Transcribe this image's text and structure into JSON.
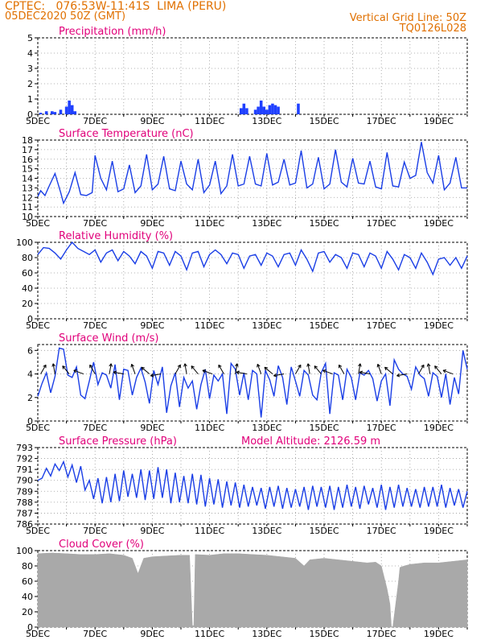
{
  "header": {
    "left_line1": "CPTEC:   076:53W-11:41S  LIMA (PERU)",
    "left_line2": "05DEC2020 50Z (GMT)",
    "right_line1": "Vertical Grid Line: 50Z",
    "right_line2": "TQ0126L028"
  },
  "colors": {
    "header": "#e07000",
    "title": "#e0007a",
    "series": "#1a3ee6",
    "precip": "#1f40ff",
    "cloud": "#a9a9a9"
  },
  "chart_data": [
    {
      "type": "bar",
      "title": "Precipitation (mm/h)",
      "ylim": [
        0,
        5
      ],
      "yticks": [
        0,
        1,
        2,
        3,
        4,
        5
      ],
      "xticks": [
        "5DEC",
        "7DEC",
        "9DEC",
        "11DEC",
        "13DEC",
        "15DEC",
        "17DEC",
        "19DEC"
      ],
      "x_start_day": 5,
      "x_end_day": 20,
      "grid": true,
      "bars": [
        {
          "day": 5.1,
          "value": 0.1
        },
        {
          "day": 5.3,
          "value": 0.2
        },
        {
          "day": 5.5,
          "value": 0.2
        },
        {
          "day": 5.6,
          "value": 0.15
        },
        {
          "day": 5.8,
          "value": 0.3
        },
        {
          "day": 6.0,
          "value": 0.5
        },
        {
          "day": 6.1,
          "value": 0.9
        },
        {
          "day": 6.2,
          "value": 0.6
        },
        {
          "day": 6.3,
          "value": 0.2
        },
        {
          "day": 12.1,
          "value": 0.4
        },
        {
          "day": 12.2,
          "value": 0.7
        },
        {
          "day": 12.3,
          "value": 0.4
        },
        {
          "day": 12.6,
          "value": 0.3
        },
        {
          "day": 12.7,
          "value": 0.5
        },
        {
          "day": 12.8,
          "value": 0.9
        },
        {
          "day": 12.9,
          "value": 0.5
        },
        {
          "day": 13.0,
          "value": 0.3
        },
        {
          "day": 13.1,
          "value": 0.6
        },
        {
          "day": 13.2,
          "value": 0.7
        },
        {
          "day": 13.3,
          "value": 0.6
        },
        {
          "day": 13.4,
          "value": 0.5
        },
        {
          "day": 14.1,
          "value": 0.7
        }
      ]
    },
    {
      "type": "line",
      "title": "Surface Temperature (nC)",
      "ylim": [
        10,
        18
      ],
      "yticks": [
        10,
        11,
        12,
        13,
        14,
        15,
        16,
        17,
        18
      ],
      "xticks": [
        "5DEC",
        "7DEC",
        "9DEC",
        "11DEC",
        "13DEC",
        "15DEC",
        "17DEC",
        "19DEC"
      ],
      "x_start_day": 5,
      "x_end_day": 20,
      "grid": true,
      "x": [
        5.0,
        5.1,
        5.25,
        5.4,
        5.6,
        5.8,
        5.9,
        6.1,
        6.3,
        6.5,
        6.7,
        6.9,
        7.0,
        7.2,
        7.4,
        7.6,
        7.8,
        8.0,
        8.2,
        8.4,
        8.6,
        8.8,
        9.0,
        9.2,
        9.4,
        9.6,
        9.8,
        10.0,
        10.2,
        10.4,
        10.6,
        10.8,
        11.0,
        11.2,
        11.4,
        11.6,
        11.8,
        12.0,
        12.2,
        12.4,
        12.6,
        12.8,
        13.0,
        13.2,
        13.4,
        13.6,
        13.8,
        14.0,
        14.2,
        14.4,
        14.6,
        14.8,
        15.0,
        15.2,
        15.4,
        15.6,
        15.8,
        16.0,
        16.2,
        16.4,
        16.6,
        16.8,
        17.0,
        17.2,
        17.4,
        17.6,
        17.8,
        18.0,
        18.2,
        18.4,
        18.6,
        18.8,
        19.0,
        19.2,
        19.4,
        19.6,
        19.8,
        20.0
      ],
      "y": [
        12.1,
        12.7,
        12.2,
        13.2,
        14.5,
        12.5,
        11.4,
        12.6,
        14.6,
        12.3,
        12.2,
        12.5,
        16.4,
        14.0,
        12.8,
        15.8,
        12.6,
        12.9,
        15.4,
        12.5,
        13.2,
        16.5,
        12.8,
        13.4,
        16.3,
        12.9,
        12.7,
        15.8,
        13.4,
        12.8,
        16.0,
        12.5,
        13.3,
        15.8,
        12.4,
        13.2,
        16.5,
        13.2,
        13.4,
        16.3,
        13.4,
        13.2,
        16.6,
        13.3,
        13.6,
        16.0,
        13.3,
        13.5,
        16.9,
        13.0,
        13.4,
        16.2,
        12.9,
        13.4,
        17.0,
        13.6,
        13.1,
        16.1,
        13.5,
        13.4,
        15.8,
        13.1,
        12.9,
        16.7,
        13.2,
        13.1,
        15.7,
        14.0,
        14.3,
        17.8,
        14.6,
        13.5,
        16.4,
        12.8,
        13.5,
        16.2,
        13.0,
        13.0
      ]
    },
    {
      "type": "line",
      "title": "Relative Humidity (%)",
      "ylim": [
        0,
        100
      ],
      "yticks": [
        0,
        20,
        40,
        60,
        80,
        100
      ],
      "xticks": [
        "5DEC",
        "7DEC",
        "9DEC",
        "11DEC",
        "13DEC",
        "15DEC",
        "17DEC",
        "19DEC"
      ],
      "x_start_day": 5,
      "x_end_day": 20,
      "grid": true,
      "x": [
        5.0,
        5.2,
        5.4,
        5.6,
        5.8,
        6.0,
        6.2,
        6.4,
        6.6,
        6.8,
        7.0,
        7.2,
        7.4,
        7.6,
        7.8,
        8.0,
        8.2,
        8.4,
        8.6,
        8.8,
        9.0,
        9.2,
        9.4,
        9.6,
        9.8,
        10.0,
        10.2,
        10.4,
        10.6,
        10.8,
        11.0,
        11.2,
        11.4,
        11.6,
        11.8,
        12.0,
        12.2,
        12.4,
        12.6,
        12.8,
        13.0,
        13.2,
        13.4,
        13.6,
        13.8,
        14.0,
        14.2,
        14.4,
        14.6,
        14.8,
        15.0,
        15.2,
        15.4,
        15.6,
        15.8,
        16.0,
        16.2,
        16.4,
        16.6,
        16.8,
        17.0,
        17.2,
        17.4,
        17.6,
        17.8,
        18.0,
        18.2,
        18.4,
        18.6,
        18.8,
        19.0,
        19.2,
        19.4,
        19.6,
        19.8,
        20.0
      ],
      "y": [
        84,
        93,
        92,
        86,
        78,
        90,
        100,
        92,
        88,
        84,
        90,
        74,
        86,
        90,
        76,
        88,
        82,
        72,
        88,
        82,
        66,
        88,
        86,
        70,
        88,
        82,
        64,
        86,
        88,
        68,
        84,
        90,
        84,
        72,
        86,
        84,
        66,
        82,
        84,
        70,
        86,
        82,
        68,
        84,
        86,
        70,
        90,
        78,
        62,
        86,
        88,
        74,
        84,
        80,
        66,
        86,
        84,
        68,
        86,
        82,
        66,
        88,
        78,
        64,
        84,
        80,
        66,
        86,
        74,
        58,
        78,
        80,
        70,
        80,
        66,
        82
      ]
    },
    {
      "type": "line",
      "title": "Surface Wind (m/s)",
      "ylim": [
        0,
        6.5
      ],
      "yticks": [
        0,
        2,
        4,
        6
      ],
      "xticks": [
        "5DEC",
        "7DEC",
        "9DEC",
        "11DEC",
        "13DEC",
        "15DEC",
        "17DEC",
        "19DEC"
      ],
      "x_start_day": 5,
      "x_end_day": 20,
      "grid": true,
      "x": [
        5.0,
        5.15,
        5.3,
        5.45,
        5.6,
        5.75,
        5.9,
        6.05,
        6.2,
        6.35,
        6.5,
        6.65,
        6.8,
        6.95,
        7.1,
        7.25,
        7.4,
        7.55,
        7.7,
        7.85,
        8.0,
        8.15,
        8.3,
        8.45,
        8.6,
        8.75,
        8.9,
        9.05,
        9.2,
        9.35,
        9.5,
        9.65,
        9.8,
        9.95,
        10.1,
        10.25,
        10.4,
        10.55,
        10.7,
        10.85,
        11.0,
        11.15,
        11.3,
        11.45,
        11.6,
        11.75,
        11.9,
        12.05,
        12.2,
        12.35,
        12.5,
        12.65,
        12.8,
        12.95,
        13.1,
        13.25,
        13.4,
        13.55,
        13.7,
        13.85,
        14.0,
        14.15,
        14.3,
        14.45,
        14.6,
        14.75,
        14.9,
        15.05,
        15.2,
        15.35,
        15.5,
        15.65,
        15.8,
        15.95,
        16.1,
        16.25,
        16.4,
        16.55,
        16.7,
        16.85,
        17.0,
        17.15,
        17.3,
        17.45,
        17.6,
        17.75,
        17.9,
        18.05,
        18.2,
        18.35,
        18.5,
        18.65,
        18.8,
        18.95,
        19.1,
        19.25,
        19.4,
        19.55,
        19.7,
        19.85,
        20.0
      ],
      "y": [
        2.1,
        3.2,
        4.1,
        2.4,
        3.8,
        6.2,
        6.1,
        3.9,
        3.7,
        4.6,
        2.2,
        1.9,
        3.4,
        5.0,
        3.1,
        4.1,
        3.9,
        2.8,
        4.8,
        1.8,
        4.4,
        4.3,
        2.2,
        3.7,
        4.5,
        3.3,
        1.5,
        4.3,
        3.1,
        4.6,
        0.7,
        3.0,
        4.1,
        1.2,
        3.7,
        2.8,
        3.4,
        1.0,
        3.1,
        4.4,
        1.9,
        3.9,
        3.4,
        4.0,
        0.6,
        4.9,
        4.4,
        2.2,
        4.1,
        1.8,
        4.3,
        4.0,
        0.3,
        4.3,
        3.5,
        2.1,
        4.7,
        3.7,
        1.4,
        4.6,
        3.4,
        2.1,
        4.3,
        3.9,
        2.2,
        1.8,
        4.1,
        4.9,
        0.6,
        4.1,
        3.9,
        1.8,
        4.4,
        3.7,
        1.8,
        4.1,
        3.9,
        4.3,
        3.6,
        1.7,
        3.4,
        4.0,
        1.3,
        5.2,
        4.4,
        4.0,
        3.8,
        2.7,
        4.6,
        3.9,
        3.6,
        2.1,
        4.1,
        3.8,
        2.0,
        4.0,
        1.4,
        3.7,
        2.3,
        6.0,
        4.4
      ],
      "arrows": [
        5.1,
        5.6,
        6.1,
        6.6,
        7.0,
        7.5,
        8.0,
        8.4,
        8.9,
        9.3,
        9.8,
        10.2,
        10.6,
        11.1,
        11.5,
        11.9,
        12.3,
        12.8,
        13.2,
        13.6,
        14.0,
        14.5,
        14.9,
        15.3,
        15.7,
        16.2,
        16.6,
        17.0,
        17.4,
        17.9,
        18.3,
        18.7,
        19.1,
        19.5
      ]
    },
    {
      "type": "line",
      "title": "Surface Pressure (hPa)",
      "subtitle": "Model Altitude: 2126.59 m",
      "ylim": [
        786,
        793
      ],
      "yticks": [
        786,
        787,
        788,
        789,
        790,
        791,
        792,
        793
      ],
      "xticks": [
        "5DEC",
        "7DEC",
        "9DEC",
        "11DEC",
        "13DEC",
        "15DEC",
        "17DEC",
        "19DEC"
      ],
      "x_start_day": 5,
      "x_end_day": 20,
      "grid": true,
      "x": [
        5.0,
        5.15,
        5.3,
        5.45,
        5.6,
        5.75,
        5.9,
        6.05,
        6.2,
        6.35,
        6.5,
        6.65,
        6.8,
        6.95,
        7.1,
        7.25,
        7.4,
        7.55,
        7.7,
        7.85,
        8.0,
        8.15,
        8.3,
        8.45,
        8.6,
        8.75,
        8.9,
        9.05,
        9.2,
        9.35,
        9.5,
        9.65,
        9.8,
        9.95,
        10.1,
        10.25,
        10.4,
        10.55,
        10.7,
        10.85,
        11.0,
        11.15,
        11.3,
        11.45,
        11.6,
        11.75,
        11.9,
        12.05,
        12.2,
        12.35,
        12.5,
        12.65,
        12.8,
        12.95,
        13.1,
        13.25,
        13.4,
        13.55,
        13.7,
        13.85,
        14.0,
        14.15,
        14.3,
        14.45,
        14.6,
        14.75,
        14.9,
        15.05,
        15.2,
        15.35,
        15.5,
        15.65,
        15.8,
        15.95,
        16.1,
        16.25,
        16.4,
        16.55,
        16.7,
        16.85,
        17.0,
        17.15,
        17.3,
        17.45,
        17.6,
        17.75,
        17.9,
        18.05,
        18.2,
        18.35,
        18.5,
        18.65,
        18.8,
        18.95,
        19.1,
        19.25,
        19.4,
        19.55,
        19.7,
        19.85,
        20.0
      ],
      "y": [
        790.0,
        790.2,
        791.1,
        790.4,
        791.5,
        790.9,
        791.7,
        790.3,
        791.4,
        789.8,
        791.3,
        789.1,
        790.0,
        788.3,
        790.2,
        787.9,
        790.3,
        788.0,
        790.6,
        788.1,
        790.9,
        788.5,
        790.6,
        788.4,
        791.0,
        788.2,
        790.9,
        788.3,
        791.2,
        788.4,
        791.0,
        787.9,
        790.7,
        788.0,
        790.4,
        787.9,
        790.6,
        787.8,
        790.5,
        787.6,
        790.2,
        787.8,
        790.1,
        787.5,
        789.9,
        787.7,
        789.8,
        787.5,
        789.6,
        787.6,
        789.4,
        787.7,
        789.3,
        787.4,
        789.4,
        787.6,
        789.5,
        787.4,
        789.3,
        787.5,
        789.2,
        787.6,
        789.4,
        787.3,
        789.5,
        787.6,
        789.4,
        787.5,
        789.5,
        787.3,
        789.4,
        787.5,
        789.6,
        787.6,
        789.4,
        787.4,
        789.5,
        787.8,
        789.3,
        787.5,
        789.6,
        787.3,
        789.4,
        787.5,
        789.6,
        787.6,
        789.3,
        787.6,
        789.2,
        787.5,
        789.4,
        787.6,
        789.4,
        787.6,
        789.6,
        787.5,
        789.3,
        787.7,
        789.2,
        787.5,
        789.0
      ]
    },
    {
      "type": "area",
      "title": "Cloud Cover (%)",
      "ylim": [
        0,
        100
      ],
      "yticks": [
        0,
        20,
        40,
        60,
        80,
        100
      ],
      "xticks": [
        "5DEC",
        "7DEC",
        "9DEC",
        "11DEC",
        "13DEC",
        "15DEC",
        "17DEC",
        "19DEC"
      ],
      "x_start_day": 5,
      "x_end_day": 20,
      "grid": true,
      "x": [
        5.0,
        5.5,
        6.0,
        6.5,
        7.0,
        7.5,
        8.0,
        8.3,
        8.5,
        8.7,
        9.0,
        9.5,
        10.0,
        10.3,
        10.4,
        10.45,
        10.5,
        11.0,
        11.5,
        12.0,
        12.5,
        13.0,
        13.5,
        14.0,
        14.3,
        14.5,
        15.0,
        15.5,
        16.0,
        16.5,
        16.8,
        17.0,
        17.2,
        17.3,
        17.35,
        17.4,
        17.6,
        17.65,
        17.8,
        18.0,
        18.5,
        19.0,
        19.5,
        20.0
      ],
      "y": [
        96,
        97,
        96,
        95,
        95,
        96,
        94,
        90,
        70,
        90,
        92,
        93,
        94,
        94,
        2,
        2,
        95,
        94,
        96,
        96,
        95,
        94,
        92,
        90,
        80,
        88,
        90,
        88,
        86,
        84,
        85,
        80,
        50,
        30,
        0,
        0,
        60,
        78,
        80,
        82,
        84,
        84,
        86,
        88
      ]
    }
  ]
}
